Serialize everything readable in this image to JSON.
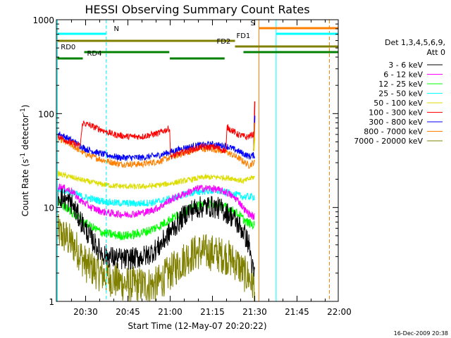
{
  "chart_data": {
    "type": "line",
    "title": "HESSI Observing Summary Count Rates",
    "xlabel": "Start Time (12-May-07 20:20:22)",
    "ylabel_main": "Count Rate (s",
    "ylabel_sup1": "-1",
    "ylabel_mid": " detector",
    "ylabel_sup2": "-1",
    "ylabel_end": ")",
    "yscale": "log",
    "ylim": [
      1,
      1000
    ],
    "xlim_minutes": [
      -0.37,
      99.63
    ],
    "x_ticks": [
      {
        "label": "20:30",
        "min": 10
      },
      {
        "label": "20:45",
        "min": 25
      },
      {
        "label": "21:00",
        "min": 40
      },
      {
        "label": "21:15",
        "min": 55
      },
      {
        "label": "21:30",
        "min": 70
      },
      {
        "label": "21:45",
        "min": 85
      },
      {
        "label": "22:00",
        "min": 100
      }
    ],
    "y_ticks": [
      {
        "label": "1",
        "value": 1
      },
      {
        "label": "10",
        "value": 10
      },
      {
        "label": "100",
        "value": 100
      },
      {
        "label": "1000",
        "value": 1000
      }
    ],
    "legend_header": [
      "Det 1,3,4,5,6,9,",
      "Att 0"
    ],
    "legend_placement": "right",
    "series": [
      {
        "name": "3 - 6 keV",
        "color": "#000000",
        "points": [
          [
            0,
            13.5
          ],
          [
            5,
            11
          ],
          [
            8,
            7.5
          ],
          [
            12,
            4.6
          ],
          [
            16,
            3.2
          ],
          [
            20,
            2.9
          ],
          [
            24,
            2.8
          ],
          [
            28,
            2.9
          ],
          [
            32,
            3.1
          ],
          [
            36,
            3.8
          ],
          [
            40,
            5.5
          ],
          [
            43,
            7
          ],
          [
            46,
            9
          ],
          [
            50,
            10
          ],
          [
            54,
            10.3
          ],
          [
            58,
            9.7
          ],
          [
            62,
            8
          ],
          [
            66,
            5.5
          ],
          [
            68,
            4
          ],
          [
            69.5,
            2
          ]
        ],
        "noise": 0.12
      },
      {
        "name": "6 - 12 keV",
        "color": "#ff00ff",
        "points": [
          [
            0,
            17
          ],
          [
            5,
            15
          ],
          [
            8,
            12
          ],
          [
            12,
            10
          ],
          [
            16,
            9
          ],
          [
            20,
            8.6
          ],
          [
            24,
            8.4
          ],
          [
            28,
            8.6
          ],
          [
            32,
            9
          ],
          [
            36,
            10
          ],
          [
            40,
            12
          ],
          [
            45,
            14
          ],
          [
            50,
            16
          ],
          [
            55,
            16
          ],
          [
            60,
            14.5
          ],
          [
            64,
            12
          ],
          [
            67,
            9
          ],
          [
            69.5,
            8
          ]
        ],
        "noise": 0.04
      },
      {
        "name": "12 - 25 keV",
        "color": "#00ff00",
        "points": [
          [
            0,
            11.5
          ],
          [
            5,
            9
          ],
          [
            8,
            7.5
          ],
          [
            12,
            6.2
          ],
          [
            16,
            5.4
          ],
          [
            20,
            5.1
          ],
          [
            24,
            5
          ],
          [
            28,
            5.2
          ],
          [
            32,
            5.6
          ],
          [
            36,
            6.3
          ],
          [
            40,
            7.5
          ],
          [
            45,
            9
          ],
          [
            50,
            10.5
          ],
          [
            55,
            10.8
          ],
          [
            60,
            10
          ],
          [
            64,
            8.6
          ],
          [
            67,
            7
          ],
          [
            69.5,
            6.5
          ]
        ],
        "noise": 0.05
      },
      {
        "name": "25 - 50 keV",
        "color": "#00ffff",
        "points": [
          [
            0,
            16
          ],
          [
            5,
            14.5
          ],
          [
            9,
            13
          ],
          [
            14,
            12
          ],
          [
            20,
            11.2
          ],
          [
            28,
            11
          ],
          [
            34,
            11.3
          ],
          [
            40,
            12.3
          ],
          [
            46,
            14
          ],
          [
            52,
            15
          ],
          [
            57,
            15
          ],
          [
            62,
            14
          ],
          [
            66,
            13
          ],
          [
            69.5,
            13
          ]
        ],
        "noise": 0.04
      },
      {
        "name": "50 - 100 keV",
        "color": "#dddd00",
        "points": [
          [
            0,
            23
          ],
          [
            5,
            21
          ],
          [
            9,
            19.5
          ],
          [
            14,
            18
          ],
          [
            20,
            17
          ],
          [
            28,
            16.6
          ],
          [
            34,
            17
          ],
          [
            40,
            18
          ],
          [
            46,
            19.5
          ],
          [
            52,
            21
          ],
          [
            57,
            21
          ],
          [
            62,
            20.5
          ],
          [
            66,
            19
          ],
          [
            69.5,
            21
          ]
        ],
        "noise": 0.03
      },
      {
        "name": "100 - 300 keV",
        "color": "#ff0000",
        "points": [
          [
            0,
            58
          ],
          [
            4,
            50
          ],
          [
            8,
            45
          ],
          [
            9,
            80
          ],
          [
            13,
            72
          ],
          [
            20,
            60
          ],
          [
            25,
            57
          ],
          [
            30,
            57
          ],
          [
            36,
            62
          ],
          [
            39.8,
            70
          ],
          [
            40.2,
            35
          ],
          [
            46,
            40
          ],
          [
            51,
            44
          ],
          [
            56,
            44
          ],
          [
            59.8,
            40
          ],
          [
            60.2,
            72
          ],
          [
            64,
            60
          ],
          [
            67,
            56
          ],
          [
            69.5,
            60
          ]
        ],
        "noise": 0.035
      },
      {
        "name": "300 - 800 keV",
        "color": "#0000ff",
        "points": [
          [
            0,
            62
          ],
          [
            5,
            52
          ],
          [
            10,
            42
          ],
          [
            16,
            37
          ],
          [
            22,
            34
          ],
          [
            30,
            34
          ],
          [
            36,
            36
          ],
          [
            40,
            39
          ],
          [
            45,
            43
          ],
          [
            50,
            46
          ],
          [
            55,
            47
          ],
          [
            60,
            45
          ],
          [
            64,
            40
          ],
          [
            68,
            35
          ],
          [
            69.5,
            36
          ]
        ],
        "noise": 0.035
      },
      {
        "name": "800 - 7000 keV",
        "color": "#ff8000",
        "points": [
          [
            0,
            55
          ],
          [
            5,
            46
          ],
          [
            10,
            37
          ],
          [
            16,
            32
          ],
          [
            22,
            29
          ],
          [
            30,
            29
          ],
          [
            36,
            31
          ],
          [
            40,
            34
          ],
          [
            45,
            38
          ],
          [
            50,
            42
          ],
          [
            55,
            42
          ],
          [
            60,
            39
          ],
          [
            64,
            34
          ],
          [
            68,
            28
          ],
          [
            69.5,
            30
          ]
        ],
        "noise": 0.035
      },
      {
        "name": "7000 - 20000 keV",
        "color": "#808000",
        "points": [
          [
            0,
            5.5
          ],
          [
            3,
            4.8
          ],
          [
            7,
            3.6
          ],
          [
            10,
            2.5
          ],
          [
            15,
            2
          ],
          [
            20,
            1.7
          ],
          [
            25,
            1.5
          ],
          [
            30,
            1.5
          ],
          [
            35,
            1.5
          ],
          [
            38,
            1.8
          ],
          [
            42,
            2.3
          ],
          [
            46,
            3
          ],
          [
            50,
            3.4
          ],
          [
            55,
            3.3
          ],
          [
            60,
            3
          ],
          [
            64,
            2.5
          ],
          [
            66,
            2
          ],
          [
            68,
            1.8
          ],
          [
            69.5,
            1.5
          ]
        ],
        "noise": 0.2
      }
    ],
    "spike": {
      "x": 69.9,
      "peaks": [
        {
          "color": "#ff0000",
          "value": 135
        },
        {
          "color": "#0000ff",
          "value": 95
        },
        {
          "color": "#ff8000",
          "value": 80
        },
        {
          "color": "#dddd00",
          "value": 55
        }
      ]
    },
    "flag_bars": [
      {
        "label": "N",
        "color": "#00ffff",
        "segments": [
          [
            0,
            17.3
          ],
          [
            77.6,
            99.6
          ]
        ],
        "label_min": 20,
        "level": 1
      },
      {
        "label": "S",
        "color": "#ff8000",
        "segments": [
          [
            71.5,
            99.6
          ]
        ],
        "label_min": 68.5,
        "level": 0
      },
      {
        "label": "FD1",
        "color": "#808000",
        "segments": [
          [
            0,
            63
          ]
        ],
        "label_min": 63.5,
        "level": 2
      },
      {
        "label": "FD2",
        "color": "#808000",
        "segments": [
          [
            63,
            99.6
          ]
        ],
        "label_min": 56.5,
        "level": 3
      },
      {
        "label": "RD0",
        "color": "#008000",
        "segments": [
          [
            9.5,
            39.7
          ],
          [
            66,
            99.6
          ]
        ],
        "label_min": 1.2,
        "level": 4
      },
      {
        "label": "RD4",
        "color": "#008000",
        "segments": [
          [
            0,
            9
          ],
          [
            39.9,
            59.3
          ]
        ],
        "label_min": 10.5,
        "level": 5
      }
    ],
    "vertical_markers": [
      {
        "min": 0,
        "color": "#00ffff",
        "style": "solid"
      },
      {
        "min": 17.3,
        "color": "#00ffff",
        "style": "dashed"
      },
      {
        "min": 71.5,
        "color": "#ff8000",
        "style": "solid"
      },
      {
        "min": 77.6,
        "color": "#00ffff",
        "style": "solid"
      },
      {
        "min": 96.5,
        "color": "#00ffff",
        "style": "dashed"
      },
      {
        "min": 96.5,
        "color": "#ff8000",
        "style": "dashed"
      }
    ],
    "footer_date": "16-Dec-2009 20:38"
  }
}
